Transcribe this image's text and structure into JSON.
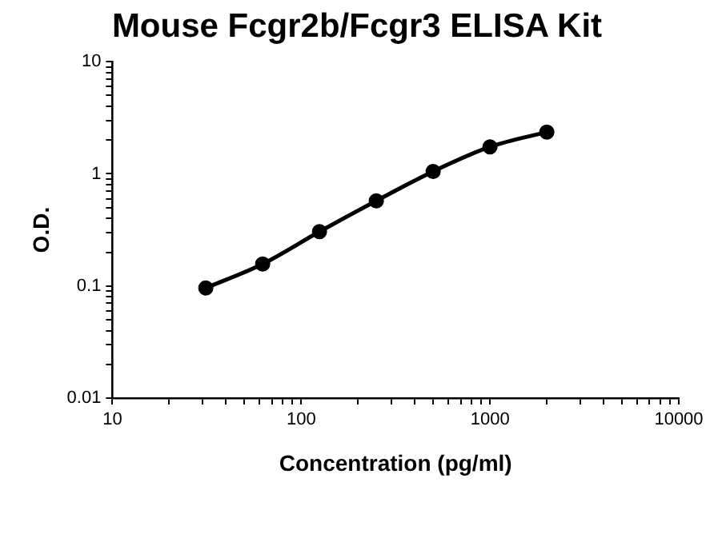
{
  "chart_data": {
    "type": "line",
    "title": "Mouse Fcgr2b/Fcgr3 ELISA Kit",
    "xlabel": "Concentration (pg/ml)",
    "ylabel": "O.D.",
    "x": [
      31.25,
      62.5,
      125,
      250,
      500,
      1000,
      2000
    ],
    "series": [
      {
        "color": "#000000",
        "values": [
          0.096,
          0.157,
          0.305,
          0.575,
          1.05,
          1.74,
          2.36
        ]
      }
    ],
    "log": "xy",
    "marker": "circle",
    "line_style": "solid",
    "grid": false,
    "legend": false,
    "xlim": [
      10,
      10000
    ],
    "ylim": [
      0.01,
      10
    ],
    "xticks": [
      10,
      {
        "value": 20,
        "label": null
      },
      {
        "value": 30,
        "label": null
      },
      {
        "value": 40,
        "label": null
      },
      {
        "value": 50,
        "label": null
      },
      {
        "value": 60,
        "label": null
      },
      {
        "value": 70,
        "label": null
      },
      {
        "value": 80,
        "label": null
      },
      {
        "value": 90,
        "label": null
      },
      100,
      {
        "value": 200,
        "label": null
      },
      {
        "value": 300,
        "label": null
      },
      {
        "value": 400,
        "label": null
      },
      {
        "value": 500,
        "label": null
      },
      {
        "value": 600,
        "label": null
      },
      {
        "value": 700,
        "label": null
      },
      {
        "value": 800,
        "label": null
      },
      {
        "value": 900,
        "label": null
      },
      1000,
      {
        "value": 2000,
        "label": null
      },
      {
        "value": 3000,
        "label": null
      },
      {
        "value": 4000,
        "label": null
      },
      {
        "value": 5000,
        "label": null
      },
      {
        "value": 6000,
        "label": null
      },
      {
        "value": 7000,
        "label": null
      },
      {
        "value": 8000,
        "label": null
      },
      {
        "value": 9000,
        "label": null
      },
      10000
    ],
    "yticks": [
      0.01,
      {
        "value": 0.02,
        "label": null
      },
      {
        "value": 0.03,
        "label": null
      },
      {
        "value": 0.04,
        "label": null
      },
      {
        "value": 0.05,
        "label": null
      },
      {
        "value": 0.06,
        "label": null
      },
      {
        "value": 0.07,
        "label": null
      },
      {
        "value": 0.08,
        "label": null
      },
      {
        "value": 0.09,
        "label": null
      },
      0.1,
      {
        "value": 0.2,
        "label": null
      },
      {
        "value": 0.3,
        "label": null
      },
      {
        "value": 0.4,
        "label": null
      },
      {
        "value": 0.5,
        "label": null
      },
      {
        "value": 0.6,
        "label": null
      },
      {
        "value": 0.7,
        "label": null
      },
      {
        "value": 0.8,
        "label": null
      },
      {
        "value": 0.9,
        "label": null
      },
      1,
      {
        "value": 2,
        "label": null
      },
      {
        "value": 3,
        "label": null
      },
      {
        "value": 4,
        "label": null
      },
      {
        "value": 5,
        "label": null
      },
      {
        "value": 6,
        "label": null
      },
      {
        "value": 7,
        "label": null
      },
      {
        "value": 8,
        "label": null
      },
      {
        "value": 9,
        "label": null
      },
      10
    ]
  }
}
